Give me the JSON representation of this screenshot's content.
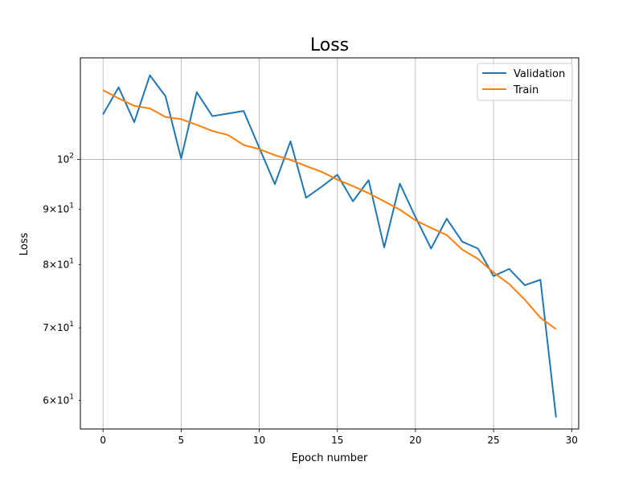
{
  "chart_data": {
    "type": "line",
    "title": "Loss",
    "xlabel": "Epoch number",
    "ylabel": "Loss",
    "yscale": "log",
    "xlim": [
      -1.45,
      30.45
    ],
    "ylim": [
      56.5,
      124
    ],
    "x_ticks": [
      0,
      5,
      10,
      15,
      20,
      25,
      30
    ],
    "y_ticks": [
      {
        "value": 60,
        "mantissa": "6",
        "base": "10",
        "exp": "1",
        "joiner": "×"
      },
      {
        "value": 70,
        "mantissa": "7",
        "base": "10",
        "exp": "1",
        "joiner": "×"
      },
      {
        "value": 80,
        "mantissa": "8",
        "base": "10",
        "exp": "1",
        "joiner": "×"
      },
      {
        "value": 90,
        "mantissa": "9",
        "base": "10",
        "exp": "1",
        "joiner": "×"
      },
      {
        "value": 100,
        "mantissa": "",
        "base": "10",
        "exp": "2",
        "joiner": ""
      }
    ],
    "grid": true,
    "legend_position": "top-right",
    "x": [
      0,
      1,
      2,
      3,
      4,
      5,
      6,
      7,
      8,
      9,
      10,
      11,
      12,
      13,
      14,
      15,
      16,
      17,
      18,
      19,
      20,
      21,
      22,
      23,
      24,
      25,
      26,
      27,
      28,
      29
    ],
    "series": [
      {
        "name": "Validation",
        "color": "#1f77b4",
        "values": [
          110.0,
          116.5,
          108.2,
          119.5,
          114.3,
          100.2,
          115.3,
          109.6,
          110.2,
          110.8,
          102.5,
          94.9,
          103.9,
          92.2,
          94.4,
          96.8,
          91.5,
          95.7,
          83.0,
          95.0,
          88.5,
          82.8,
          88.2,
          84.0,
          82.8,
          78.1,
          79.3,
          76.6,
          77.5,
          57.9
        ]
      },
      {
        "name": "Train",
        "color": "#ff7f0e",
        "values": [
          115.8,
          113.8,
          112.0,
          111.4,
          109.4,
          108.9,
          107.6,
          106.2,
          105.3,
          103.1,
          102.2,
          100.9,
          99.9,
          98.6,
          97.4,
          95.8,
          94.5,
          93.1,
          91.5,
          89.9,
          87.9,
          86.5,
          85.2,
          82.6,
          81.0,
          78.7,
          76.8,
          74.3,
          71.5,
          69.8
        ]
      }
    ]
  }
}
